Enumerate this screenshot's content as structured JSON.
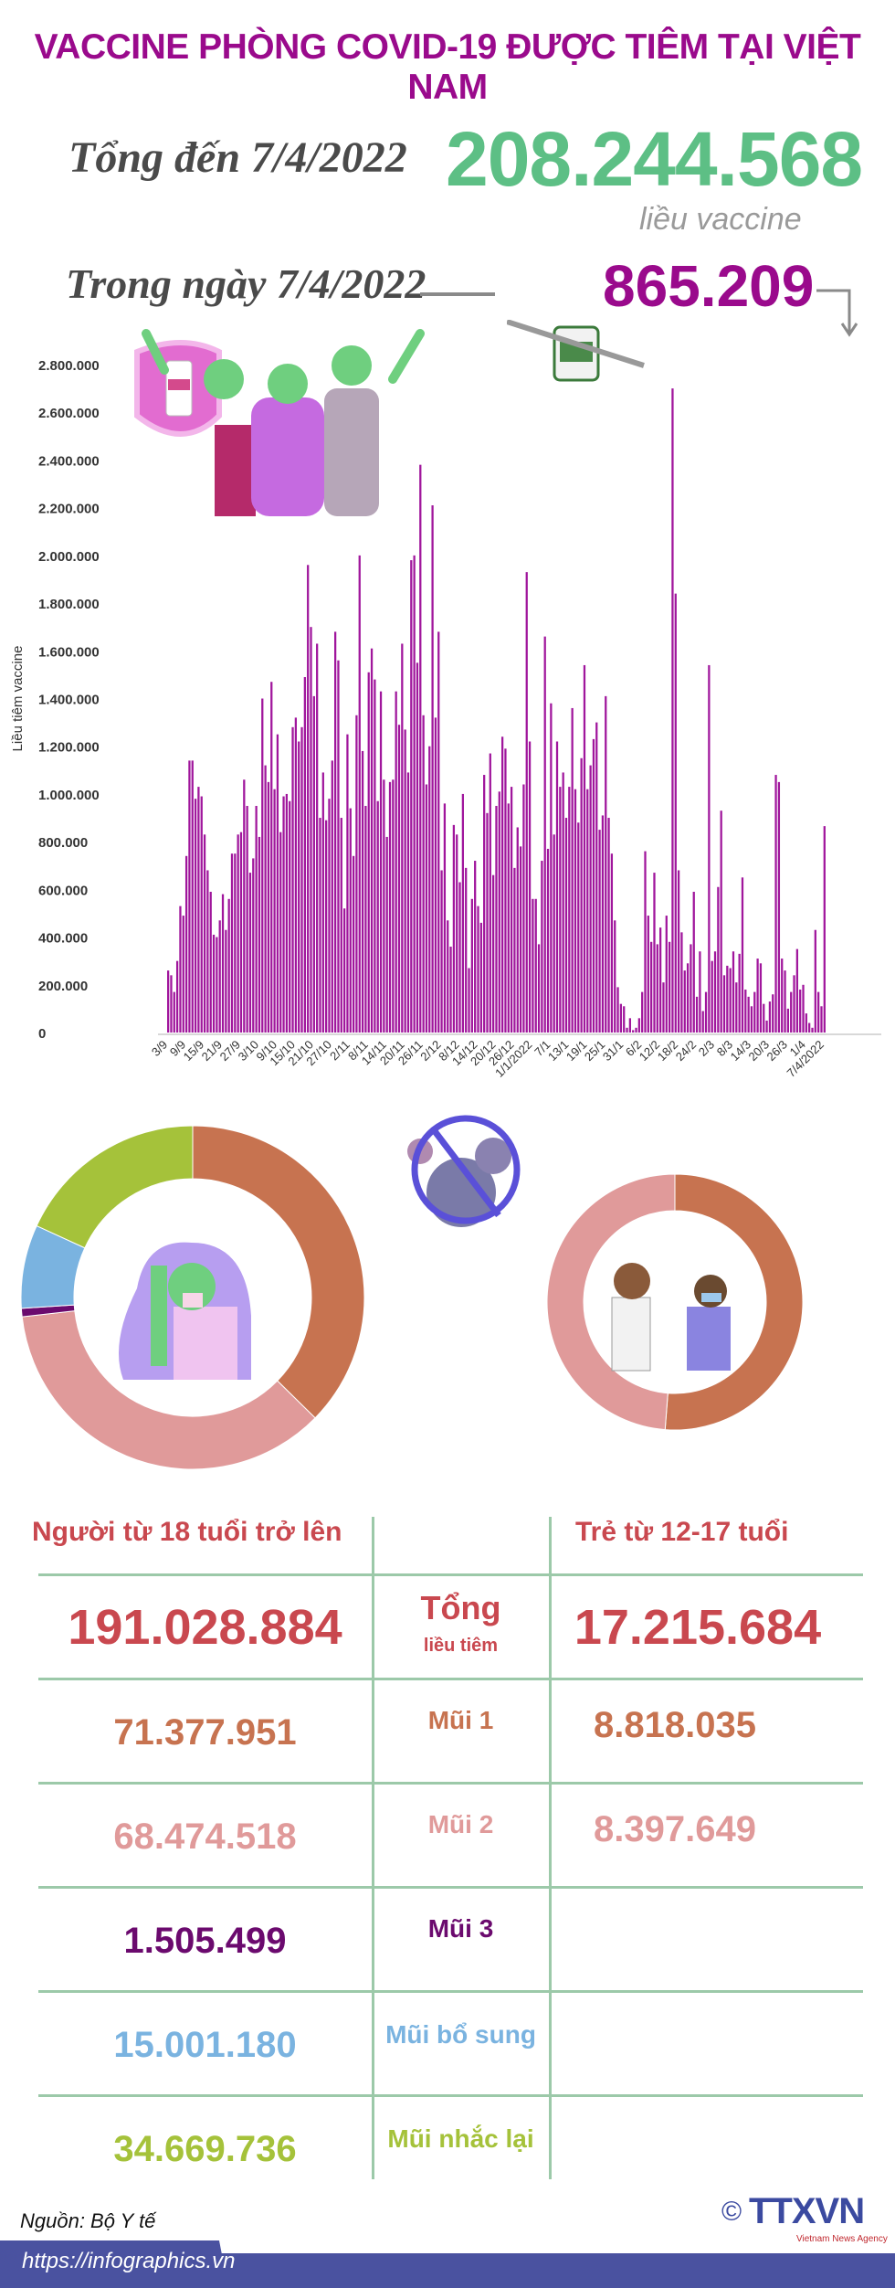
{
  "header": {
    "title": "VACCINE PHÒNG COVID-19 ĐƯỢC TIÊM TẠI VIỆT NAM",
    "total_label": "Tổng đến 7/4/2022",
    "total_value": "208.244.568",
    "total_unit": "liều vaccine",
    "day_label": "Trong ngày 7/4/2022",
    "day_value": "865.209",
    "colors": {
      "title": "#9a0a8c",
      "total": "#5dbf85",
      "day": "#9a0a8c"
    }
  },
  "chart_data": [
    {
      "type": "bar",
      "ylabel": "Liều tiêm vaccine",
      "ylim": [
        0,
        2800000
      ],
      "y_ticks": [
        "0",
        "200.000",
        "400.000",
        "600.000",
        "800.000",
        "1.000.000",
        "1.200.000",
        "1.400.000",
        "1.600.000",
        "1.800.000",
        "2.000.000",
        "2.200.000",
        "2.400.000",
        "2.600.000",
        "2.800.000"
      ],
      "x_ticks": [
        "3/9",
        "9/9",
        "15/9",
        "21/9",
        "27/9",
        "3/10",
        "9/10",
        "15/10",
        "21/10",
        "27/10",
        "2/11",
        "8/11",
        "14/11",
        "20/11",
        "26/11",
        "2/12",
        "8/12",
        "14/12",
        "20/12",
        "26/12",
        "1/1/2022",
        "7/1",
        "13/1",
        "19/1",
        "25/1",
        "31/1",
        "6/2",
        "12/2",
        "18/2",
        "24/2",
        "2/3",
        "8/3",
        "14/3",
        "20/3",
        "26/3",
        "1/4",
        "7/4/2022"
      ],
      "x_range": [
        "3/9/2021",
        "7/4/2022"
      ],
      "grid": false,
      "color": "#a0169c",
      "values": [
        260000,
        240000,
        170000,
        300000,
        530000,
        490000,
        740000,
        1140000,
        1140000,
        980000,
        1030000,
        990000,
        830000,
        680000,
        590000,
        410000,
        400000,
        470000,
        580000,
        430000,
        560000,
        750000,
        750000,
        830000,
        840000,
        1060000,
        950000,
        670000,
        730000,
        950000,
        820000,
        1400000,
        1120000,
        1050000,
        1470000,
        1020000,
        1250000,
        840000,
        990000,
        1000000,
        970000,
        1280000,
        1320000,
        1220000,
        1280000,
        1490000,
        1960000,
        1700000,
        1410000,
        1630000,
        900000,
        1090000,
        890000,
        980000,
        1140000,
        1680000,
        1560000,
        900000,
        520000,
        1250000,
        940000,
        740000,
        1330000,
        2000000,
        1180000,
        950000,
        1510000,
        1610000,
        1480000,
        970000,
        1430000,
        1060000,
        820000,
        1050000,
        1060000,
        1430000,
        1290000,
        1630000,
        1270000,
        1090000,
        1980000,
        2000000,
        1550000,
        2380000,
        1330000,
        1040000,
        1200000,
        2210000,
        1320000,
        1680000,
        680000,
        960000,
        470000,
        360000,
        870000,
        830000,
        630000,
        1000000,
        690000,
        270000,
        560000,
        720000,
        530000,
        460000,
        1080000,
        920000,
        1170000,
        660000,
        950000,
        1010000,
        1240000,
        1190000,
        960000,
        1030000,
        690000,
        860000,
        780000,
        1040000,
        1930000,
        1220000,
        560000,
        560000,
        370000,
        720000,
        1660000,
        770000,
        1380000,
        830000,
        1220000,
        1030000,
        1090000,
        900000,
        1030000,
        1360000,
        1020000,
        880000,
        1150000,
        1540000,
        1020000,
        1120000,
        1230000,
        1300000,
        850000,
        910000,
        1410000,
        900000,
        750000,
        470000,
        190000,
        120000,
        110000,
        20000,
        60000,
        10000,
        20000,
        60000,
        170000,
        760000,
        490000,
        380000,
        670000,
        370000,
        440000,
        210000,
        490000,
        380000,
        2700000,
        1840000,
        680000,
        420000,
        260000,
        290000,
        370000,
        590000,
        150000,
        340000,
        90000,
        170000,
        1540000,
        300000,
        340000,
        610000,
        930000,
        240000,
        280000,
        270000,
        340000,
        210000,
        330000,
        650000,
        180000,
        150000,
        110000,
        170000,
        310000,
        290000,
        120000,
        50000,
        130000,
        160000,
        1080000,
        1050000,
        310000,
        260000,
        100000,
        170000,
        240000,
        350000,
        180000,
        200000,
        80000,
        40000,
        20000,
        430000,
        170000,
        110000,
        865209
      ]
    },
    {
      "type": "pie",
      "donut": true,
      "group": "Người từ 18 tuổi trở lên",
      "slices": [
        {
          "label": "Mũi 1",
          "value": 71377951,
          "color": "#c77350"
        },
        {
          "label": "Mũi 2",
          "value": 68474518,
          "color": "#e09a9a"
        },
        {
          "label": "Mũi 3",
          "value": 1505499,
          "color": "#6b0a6e"
        },
        {
          "label": "Mũi bổ sung",
          "value": 15001180,
          "color": "#7ab3e0"
        },
        {
          "label": "Mũi nhắc lại",
          "value": 34669736,
          "color": "#a5c23a"
        }
      ]
    },
    {
      "type": "pie",
      "donut": true,
      "group": "Trẻ từ 12-17 tuổi",
      "slices": [
        {
          "label": "Mũi 1",
          "value": 8818035,
          "color": "#c77350"
        },
        {
          "label": "Mũi 2",
          "value": 8397649,
          "color": "#e09a9a"
        }
      ]
    }
  ],
  "table": {
    "col_adult": "Người từ 18 tuổi trở lên",
    "col_child": "Trẻ từ 12-17 tuổi",
    "rows": [
      {
        "label": "Tổng",
        "sublabel": "liều tiêm",
        "adult": "191.028.884",
        "child": "17.215.684",
        "color": "#c9484f"
      },
      {
        "label": "Mũi 1",
        "adult": "71.377.951",
        "child": "8.818.035",
        "color": "#c77350"
      },
      {
        "label": "Mũi 2",
        "adult": "68.474.518",
        "child": "8.397.649",
        "color": "#e09a9a"
      },
      {
        "label": "Mũi 3",
        "adult": "1.505.499",
        "child": "",
        "color": "#6b0a6e"
      },
      {
        "label": "Mũi bổ sung",
        "adult": "15.001.180",
        "child": "",
        "color": "#7ab3e0"
      },
      {
        "label": "Mũi nhắc lại",
        "adult": "34.669.736",
        "child": "",
        "color": "#a5c23a"
      }
    ]
  },
  "footer": {
    "source": "Nguồn: Bộ Y tế",
    "url": "https://infographics.vn",
    "logo_text": "TTXVN",
    "logo_sub": "Vietnam News Agency",
    "copyright": "©"
  },
  "icons": [
    "people-celebrating-illustration",
    "vaccine-syringe-illustration",
    "shield-vial-icon",
    "no-virus-icon",
    "flexing-man-illustration",
    "nurse-vaccinating-teen-illustration",
    "arrow-down-icon"
  ]
}
